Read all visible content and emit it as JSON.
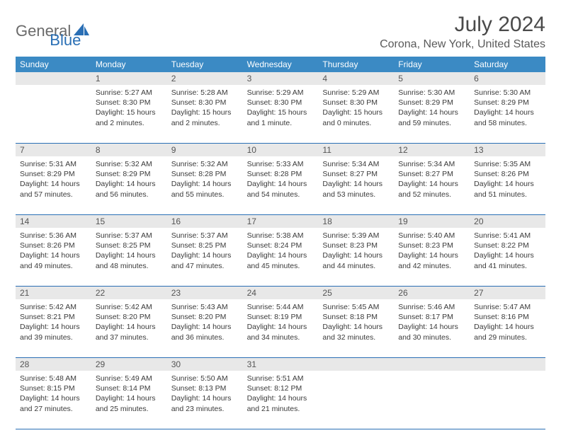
{
  "logo": {
    "text1": "General",
    "text2": "Blue"
  },
  "title": "July 2024",
  "location": "Corona, New York, United States",
  "header_bg": "#3b8ac4",
  "daynum_bg": "#e8e8e8",
  "border_color": "#2a6fb5",
  "text_color": "#3a3a3a",
  "font_size_body": 10.5,
  "font_size_title": 30,
  "font_size_location": 16,
  "font_size_dow": 12,
  "dow": [
    "Sunday",
    "Monday",
    "Tuesday",
    "Wednesday",
    "Thursday",
    "Friday",
    "Saturday"
  ],
  "weeks": [
    [
      {
        "n": "",
        "l1": "",
        "l2": "",
        "l3": "",
        "l4": ""
      },
      {
        "n": "1",
        "l1": "Sunrise: 5:27 AM",
        "l2": "Sunset: 8:30 PM",
        "l3": "Daylight: 15 hours",
        "l4": "and 2 minutes."
      },
      {
        "n": "2",
        "l1": "Sunrise: 5:28 AM",
        "l2": "Sunset: 8:30 PM",
        "l3": "Daylight: 15 hours",
        "l4": "and 2 minutes."
      },
      {
        "n": "3",
        "l1": "Sunrise: 5:29 AM",
        "l2": "Sunset: 8:30 PM",
        "l3": "Daylight: 15 hours",
        "l4": "and 1 minute."
      },
      {
        "n": "4",
        "l1": "Sunrise: 5:29 AM",
        "l2": "Sunset: 8:30 PM",
        "l3": "Daylight: 15 hours",
        "l4": "and 0 minutes."
      },
      {
        "n": "5",
        "l1": "Sunrise: 5:30 AM",
        "l2": "Sunset: 8:29 PM",
        "l3": "Daylight: 14 hours",
        "l4": "and 59 minutes."
      },
      {
        "n": "6",
        "l1": "Sunrise: 5:30 AM",
        "l2": "Sunset: 8:29 PM",
        "l3": "Daylight: 14 hours",
        "l4": "and 58 minutes."
      }
    ],
    [
      {
        "n": "7",
        "l1": "Sunrise: 5:31 AM",
        "l2": "Sunset: 8:29 PM",
        "l3": "Daylight: 14 hours",
        "l4": "and 57 minutes."
      },
      {
        "n": "8",
        "l1": "Sunrise: 5:32 AM",
        "l2": "Sunset: 8:29 PM",
        "l3": "Daylight: 14 hours",
        "l4": "and 56 minutes."
      },
      {
        "n": "9",
        "l1": "Sunrise: 5:32 AM",
        "l2": "Sunset: 8:28 PM",
        "l3": "Daylight: 14 hours",
        "l4": "and 55 minutes."
      },
      {
        "n": "10",
        "l1": "Sunrise: 5:33 AM",
        "l2": "Sunset: 8:28 PM",
        "l3": "Daylight: 14 hours",
        "l4": "and 54 minutes."
      },
      {
        "n": "11",
        "l1": "Sunrise: 5:34 AM",
        "l2": "Sunset: 8:27 PM",
        "l3": "Daylight: 14 hours",
        "l4": "and 53 minutes."
      },
      {
        "n": "12",
        "l1": "Sunrise: 5:34 AM",
        "l2": "Sunset: 8:27 PM",
        "l3": "Daylight: 14 hours",
        "l4": "and 52 minutes."
      },
      {
        "n": "13",
        "l1": "Sunrise: 5:35 AM",
        "l2": "Sunset: 8:26 PM",
        "l3": "Daylight: 14 hours",
        "l4": "and 51 minutes."
      }
    ],
    [
      {
        "n": "14",
        "l1": "Sunrise: 5:36 AM",
        "l2": "Sunset: 8:26 PM",
        "l3": "Daylight: 14 hours",
        "l4": "and 49 minutes."
      },
      {
        "n": "15",
        "l1": "Sunrise: 5:37 AM",
        "l2": "Sunset: 8:25 PM",
        "l3": "Daylight: 14 hours",
        "l4": "and 48 minutes."
      },
      {
        "n": "16",
        "l1": "Sunrise: 5:37 AM",
        "l2": "Sunset: 8:25 PM",
        "l3": "Daylight: 14 hours",
        "l4": "and 47 minutes."
      },
      {
        "n": "17",
        "l1": "Sunrise: 5:38 AM",
        "l2": "Sunset: 8:24 PM",
        "l3": "Daylight: 14 hours",
        "l4": "and 45 minutes."
      },
      {
        "n": "18",
        "l1": "Sunrise: 5:39 AM",
        "l2": "Sunset: 8:23 PM",
        "l3": "Daylight: 14 hours",
        "l4": "and 44 minutes."
      },
      {
        "n": "19",
        "l1": "Sunrise: 5:40 AM",
        "l2": "Sunset: 8:23 PM",
        "l3": "Daylight: 14 hours",
        "l4": "and 42 minutes."
      },
      {
        "n": "20",
        "l1": "Sunrise: 5:41 AM",
        "l2": "Sunset: 8:22 PM",
        "l3": "Daylight: 14 hours",
        "l4": "and 41 minutes."
      }
    ],
    [
      {
        "n": "21",
        "l1": "Sunrise: 5:42 AM",
        "l2": "Sunset: 8:21 PM",
        "l3": "Daylight: 14 hours",
        "l4": "and 39 minutes."
      },
      {
        "n": "22",
        "l1": "Sunrise: 5:42 AM",
        "l2": "Sunset: 8:20 PM",
        "l3": "Daylight: 14 hours",
        "l4": "and 37 minutes."
      },
      {
        "n": "23",
        "l1": "Sunrise: 5:43 AM",
        "l2": "Sunset: 8:20 PM",
        "l3": "Daylight: 14 hours",
        "l4": "and 36 minutes."
      },
      {
        "n": "24",
        "l1": "Sunrise: 5:44 AM",
        "l2": "Sunset: 8:19 PM",
        "l3": "Daylight: 14 hours",
        "l4": "and 34 minutes."
      },
      {
        "n": "25",
        "l1": "Sunrise: 5:45 AM",
        "l2": "Sunset: 8:18 PM",
        "l3": "Daylight: 14 hours",
        "l4": "and 32 minutes."
      },
      {
        "n": "26",
        "l1": "Sunrise: 5:46 AM",
        "l2": "Sunset: 8:17 PM",
        "l3": "Daylight: 14 hours",
        "l4": "and 30 minutes."
      },
      {
        "n": "27",
        "l1": "Sunrise: 5:47 AM",
        "l2": "Sunset: 8:16 PM",
        "l3": "Daylight: 14 hours",
        "l4": "and 29 minutes."
      }
    ],
    [
      {
        "n": "28",
        "l1": "Sunrise: 5:48 AM",
        "l2": "Sunset: 8:15 PM",
        "l3": "Daylight: 14 hours",
        "l4": "and 27 minutes."
      },
      {
        "n": "29",
        "l1": "Sunrise: 5:49 AM",
        "l2": "Sunset: 8:14 PM",
        "l3": "Daylight: 14 hours",
        "l4": "and 25 minutes."
      },
      {
        "n": "30",
        "l1": "Sunrise: 5:50 AM",
        "l2": "Sunset: 8:13 PM",
        "l3": "Daylight: 14 hours",
        "l4": "and 23 minutes."
      },
      {
        "n": "31",
        "l1": "Sunrise: 5:51 AM",
        "l2": "Sunset: 8:12 PM",
        "l3": "Daylight: 14 hours",
        "l4": "and 21 minutes."
      },
      {
        "n": "",
        "l1": "",
        "l2": "",
        "l3": "",
        "l4": ""
      },
      {
        "n": "",
        "l1": "",
        "l2": "",
        "l3": "",
        "l4": ""
      },
      {
        "n": "",
        "l1": "",
        "l2": "",
        "l3": "",
        "l4": ""
      }
    ]
  ]
}
